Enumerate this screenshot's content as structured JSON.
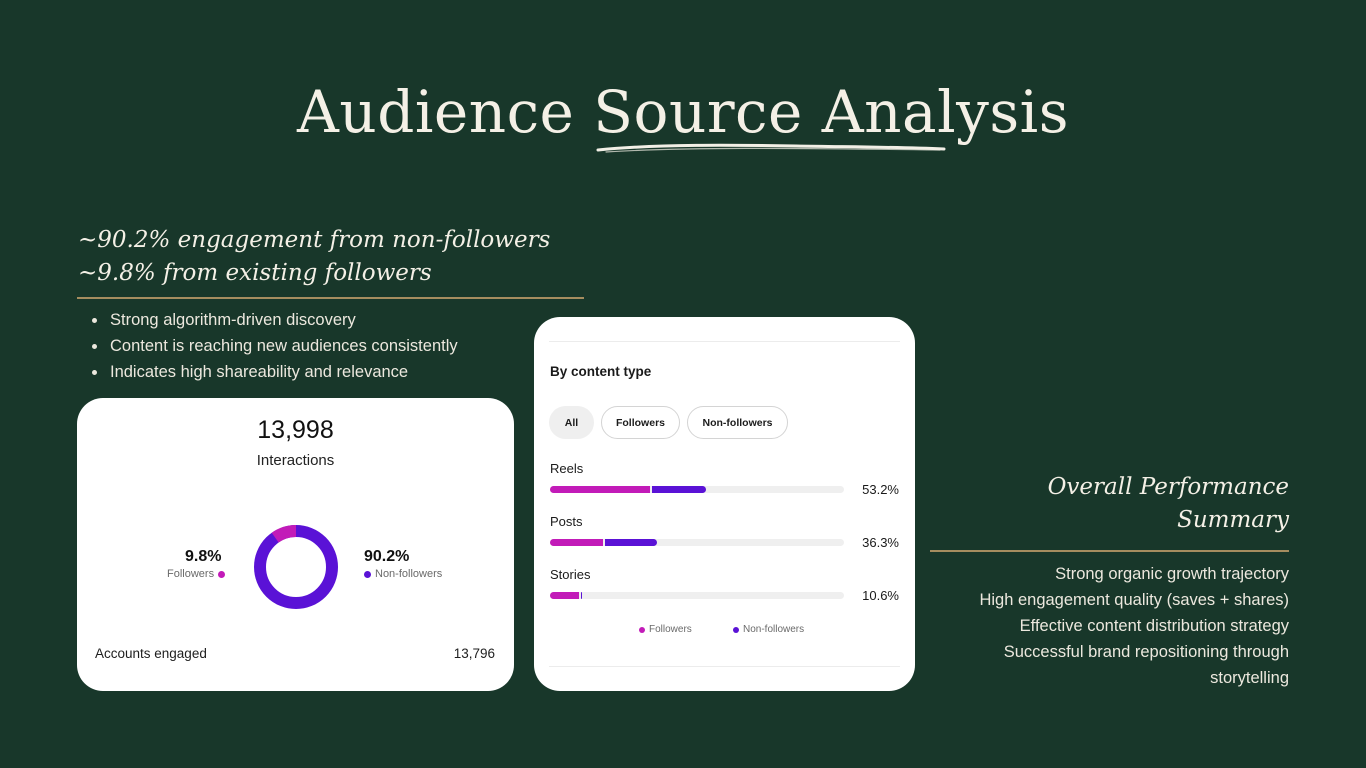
{
  "slide": {
    "title": "Audience Source Analysis"
  },
  "headline": {
    "line1": "~90.2% engagement from non-followers",
    "line2": "~9.8% from existing followers"
  },
  "bullets": [
    "Strong algorithm-driven discovery",
    "Content is reaching new audiences consistently",
    "Indicates high shareability and relevance"
  ],
  "interactions_card": {
    "total": "13,998",
    "total_label": "Interactions",
    "followers_pct": "9.8%",
    "followers_label": "Followers",
    "nonfollowers_pct": "90.2%",
    "nonfollowers_label": "Non-followers",
    "followers_share": 0.098,
    "accounts_label": "Accounts engaged",
    "accounts_value": "13,796"
  },
  "content_type_card": {
    "section_title": "By content type",
    "filters": [
      {
        "label": "All",
        "active": true
      },
      {
        "label": "Followers",
        "active": false
      },
      {
        "label": "Non-followers",
        "active": false
      }
    ],
    "rows": [
      {
        "label": "Reels",
        "pct": "53.2%",
        "followers": 34.1,
        "nonfollowers": 19.1
      },
      {
        "label": "Posts",
        "pct": "36.3%",
        "followers": 18.1,
        "nonfollowers": 18.2
      },
      {
        "label": "Stories",
        "pct": "10.6%",
        "followers": 10.0,
        "nonfollowers": 0.6
      }
    ],
    "legend_followers": "Followers",
    "legend_nonfollowers": "Non-followers"
  },
  "summary": {
    "title_line1": "Overall Performance",
    "title_line2": "Summary",
    "items": [
      "Strong organic growth trajectory",
      "High engagement quality (saves + shares)",
      "Effective content distribution strategy",
      "Successful brand repositioning through",
      "storytelling"
    ]
  },
  "colors": {
    "background": "#18372a",
    "accent_gold": "#a58d5f",
    "followers": "#c21bb8",
    "nonfollowers": "#5a12d6"
  }
}
